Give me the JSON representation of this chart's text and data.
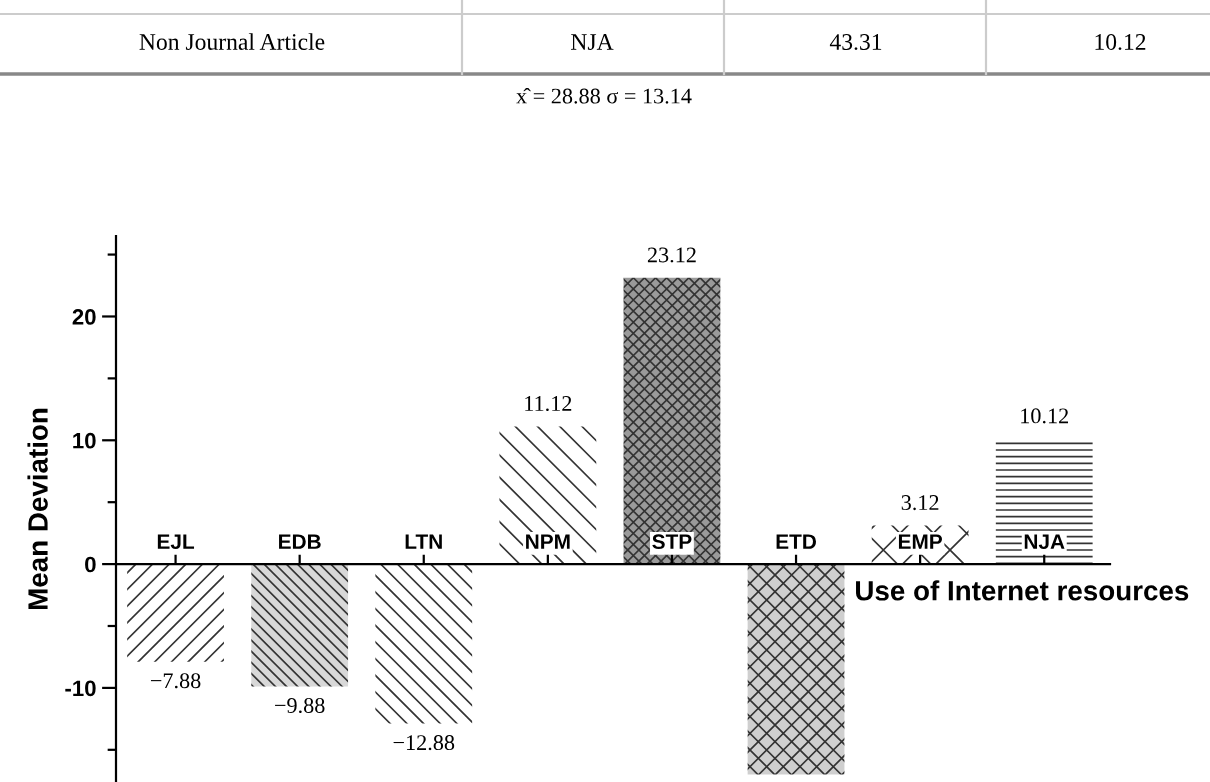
{
  "chart_data": {
    "type": "bar",
    "ylabel": "Mean Deviation",
    "xlabel": "Use of Internet resources",
    "categories": [
      "EJL",
      "EDB",
      "LTN",
      "NPM",
      "STP",
      "ETD",
      "EMP",
      "NJA"
    ],
    "values": [
      -7.88,
      -9.88,
      -12.88,
      11.12,
      23.12,
      -17,
      3.12,
      10.12
    ],
    "colors": [
      "#ffffff",
      "#d8d8d8",
      "#ffffff",
      "#ffffff",
      "#9a9a9a",
      "#cfcfcf",
      "#ffffff",
      "#ffffff"
    ],
    "value_labels": [
      "−7.88",
      "−9.88",
      "−12.88",
      "11.12",
      "23.12",
      null,
      "3.12",
      "10.12"
    ],
    "ylim": [
      -17.6,
      26.5
    ],
    "yticks": [
      {
        "value": -15,
        "label": null
      },
      -10,
      {
        "value": -5,
        "label": null
      },
      0,
      {
        "value": 5,
        "label": null
      },
      10,
      {
        "value": 15,
        "label": null
      },
      20,
      {
        "value": 25,
        "label": null
      }
    ],
    "grid": false,
    "annotations": [
      "Non Journal Article",
      "NJA",
      "43.31",
      "10.12",
      "x̂ = 28.88 σ = 13.14"
    ]
  }
}
